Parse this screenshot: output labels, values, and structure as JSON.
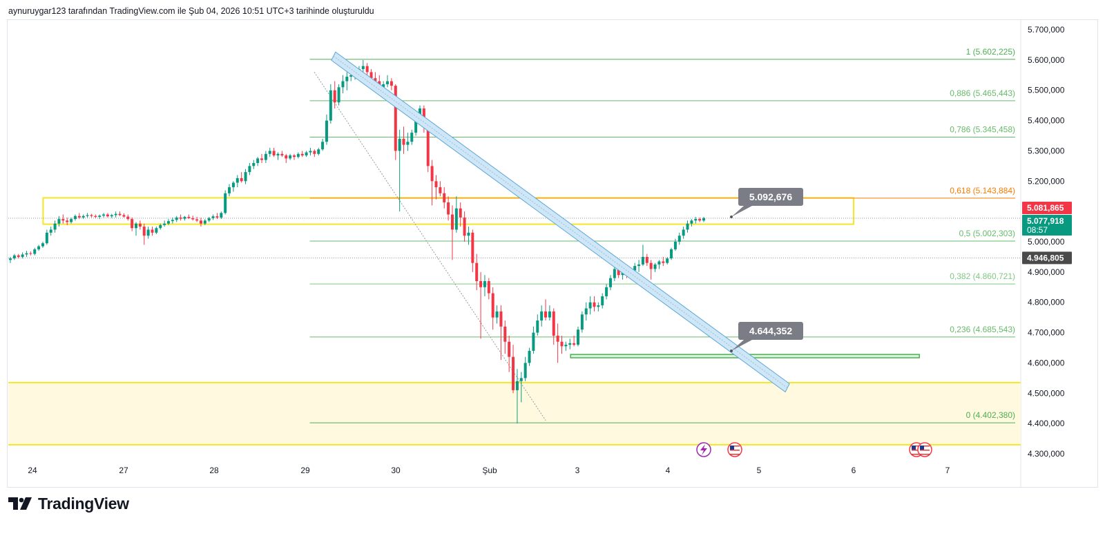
{
  "header": {
    "attribution": "aynuruygar123 tarafından TradingView.com ile Şub 04, 2026 10:51 UTC+3 tarihinde oluşturuldu"
  },
  "branding": {
    "logo_text": "TradingView",
    "logo_icon": "tradingview-logo-icon"
  },
  "chart_data": {
    "type": "candlestick",
    "x_axis": {
      "ticks": [
        "24",
        "27",
        "28",
        "29",
        "30",
        "Şub",
        "3",
        "4",
        "5",
        "6",
        "7"
      ]
    },
    "y_axis": {
      "range": [
        4.255,
        5.745
      ],
      "ticks": [
        "5.700,000",
        "5.600,000",
        "5.500,000",
        "5.400,000",
        "5.300,000",
        "5.200,000",
        "5.000,000",
        "4.900,000",
        "4.800,000",
        "4.700,000",
        "4.600,000",
        "4.500,000",
        "4.400,000",
        "4.300,000"
      ],
      "tick_values": [
        5.7,
        5.6,
        5.5,
        5.4,
        5.3,
        5.2,
        5.0,
        4.9,
        4.8,
        4.7,
        4.6,
        4.5,
        4.4,
        4.3
      ]
    },
    "price_labels": {
      "high_marker": {
        "text": "5.081,865",
        "value": 5.081865,
        "color": "#f23645"
      },
      "last_price": {
        "text": "5.077,918",
        "countdown": "08:57",
        "value": 5.077918,
        "color": "#089981"
      },
      "reference": {
        "text": "4.946,805",
        "value": 4.946805,
        "color": "#4a4a4a"
      }
    },
    "fibonacci": {
      "x_start_day": 29.05,
      "levels": [
        {
          "ratio": "1",
          "text": "1 (5.602,225)",
          "value": 5.602225,
          "color": "#4caf50"
        },
        {
          "ratio": "0.886",
          "text": "0,886 (5.465,443)",
          "value": 5.465443,
          "color": "#66bb6a"
        },
        {
          "ratio": "0.786",
          "text": "0,786 (5.345,458)",
          "value": 5.345458,
          "color": "#66bb6a"
        },
        {
          "ratio": "0.618",
          "text": "0,618 (5.143,884)",
          "value": 5.143884,
          "color": "#f57c00"
        },
        {
          "ratio": "0.5",
          "text": "0,5 (5.002,303)",
          "value": 5.002303,
          "color": "#66bb6a"
        },
        {
          "ratio": "0.382",
          "text": "0,382 (4.860,721)",
          "value": 4.860721,
          "color": "#81c784"
        },
        {
          "ratio": "0.236",
          "text": "0,236 (4.685,543)",
          "value": 4.685543,
          "color": "#66bb6a"
        },
        {
          "ratio": "0",
          "text": "0 (4.402,380)",
          "value": 4.40238,
          "color": "#4caf50"
        }
      ]
    },
    "annotations": {
      "callout_upper": {
        "text": "5.092,676",
        "value": 5.092676
      },
      "callout_lower": {
        "text": "4.644,352",
        "value": 4.644352
      }
    },
    "zones": {
      "yellow_resistance": {
        "day_from": 24.35,
        "day_to": 6.0,
        "low": 5.058,
        "high": 5.145
      },
      "yellow_support": {
        "low": 4.33,
        "high": 4.535
      },
      "green_box": {
        "day_from": 2.85,
        "day_to": 6.7,
        "low": 4.617,
        "high": 4.628
      }
    },
    "trend_channel": {
      "start": {
        "day": 29.35,
        "value": 5.615
      },
      "end": {
        "day": 5.3,
        "value": 4.52
      }
    },
    "dotted_trend": {
      "start": {
        "day": 29.1,
        "value": 5.56
      },
      "end": {
        "day": 2.3,
        "value": 4.41
      }
    },
    "candles": [
      [
        4.94,
        4.95,
        4.93,
        4.945
      ],
      [
        4.945,
        4.96,
        4.94,
        4.955
      ],
      [
        4.955,
        4.96,
        4.945,
        4.95
      ],
      [
        4.95,
        4.965,
        4.945,
        4.958
      ],
      [
        4.958,
        4.97,
        4.95,
        4.962
      ],
      [
        4.962,
        4.968,
        4.955,
        4.96
      ],
      [
        4.96,
        4.98,
        4.955,
        4.975
      ],
      [
        4.975,
        4.99,
        4.97,
        4.985
      ],
      [
        4.985,
        5.0,
        4.98,
        4.995
      ],
      [
        4.995,
        5.04,
        4.99,
        5.03
      ],
      [
        5.03,
        5.05,
        5.02,
        5.04
      ],
      [
        5.04,
        5.07,
        5.03,
        5.06
      ],
      [
        5.06,
        5.085,
        5.05,
        5.075
      ],
      [
        5.075,
        5.09,
        5.06,
        5.07
      ],
      [
        5.07,
        5.08,
        5.055,
        5.065
      ],
      [
        5.065,
        5.08,
        5.06,
        5.075
      ],
      [
        5.075,
        5.09,
        5.07,
        5.085
      ],
      [
        5.085,
        5.095,
        5.075,
        5.08
      ],
      [
        5.08,
        5.09,
        5.075,
        5.085
      ],
      [
        5.085,
        5.095,
        5.08,
        5.088
      ],
      [
        5.088,
        5.092,
        5.08,
        5.085
      ],
      [
        5.085,
        5.09,
        5.078,
        5.082
      ],
      [
        5.082,
        5.09,
        5.075,
        5.086
      ],
      [
        5.086,
        5.095,
        5.08,
        5.09
      ],
      [
        5.09,
        5.095,
        5.08,
        5.084
      ],
      [
        5.084,
        5.092,
        5.078,
        5.088
      ],
      [
        5.088,
        5.1,
        5.08,
        5.092
      ],
      [
        5.092,
        5.1,
        5.085,
        5.088
      ],
      [
        5.088,
        5.094,
        5.08,
        5.083
      ],
      [
        5.083,
        5.09,
        5.07,
        5.075
      ],
      [
        5.075,
        5.08,
        5.035,
        5.045
      ],
      [
        5.045,
        5.065,
        5.02,
        5.06
      ],
      [
        5.06,
        5.07,
        5.04,
        5.05
      ],
      [
        5.05,
        5.06,
        4.99,
        5.02
      ],
      [
        5.02,
        5.05,
        5.01,
        5.04
      ],
      [
        5.04,
        5.05,
        5.02,
        5.03
      ],
      [
        5.03,
        5.05,
        5.025,
        5.045
      ],
      [
        5.045,
        5.06,
        5.04,
        5.055
      ],
      [
        5.055,
        5.07,
        5.05,
        5.06
      ],
      [
        5.06,
        5.075,
        5.055,
        5.068
      ],
      [
        5.068,
        5.08,
        5.06,
        5.072
      ],
      [
        5.072,
        5.085,
        5.065,
        5.08
      ],
      [
        5.08,
        5.09,
        5.07,
        5.076
      ],
      [
        5.076,
        5.085,
        5.07,
        5.082
      ],
      [
        5.082,
        5.09,
        5.075,
        5.078
      ],
      [
        5.078,
        5.086,
        5.07,
        5.074
      ],
      [
        5.074,
        5.082,
        5.065,
        5.07
      ],
      [
        5.07,
        5.08,
        5.05,
        5.06
      ],
      [
        5.06,
        5.075,
        5.055,
        5.07
      ],
      [
        5.07,
        5.082,
        5.065,
        5.078
      ],
      [
        5.078,
        5.09,
        5.072,
        5.084
      ],
      [
        5.084,
        5.095,
        5.075,
        5.08
      ],
      [
        5.08,
        5.1,
        5.075,
        5.095
      ],
      [
        5.095,
        5.17,
        5.09,
        5.16
      ],
      [
        5.16,
        5.19,
        5.15,
        5.18
      ],
      [
        5.18,
        5.2,
        5.165,
        5.195
      ],
      [
        5.195,
        5.22,
        5.18,
        5.21
      ],
      [
        5.21,
        5.23,
        5.195,
        5.2
      ],
      [
        5.2,
        5.24,
        5.19,
        5.23
      ],
      [
        5.23,
        5.26,
        5.22,
        5.25
      ],
      [
        5.25,
        5.27,
        5.24,
        5.26
      ],
      [
        5.26,
        5.28,
        5.25,
        5.275
      ],
      [
        5.275,
        5.29,
        5.26,
        5.27
      ],
      [
        5.27,
        5.3,
        5.26,
        5.29
      ],
      [
        5.29,
        5.31,
        5.28,
        5.3
      ],
      [
        5.3,
        5.31,
        5.28,
        5.285
      ],
      [
        5.285,
        5.295,
        5.27,
        5.29
      ],
      [
        5.29,
        5.3,
        5.28,
        5.285
      ],
      [
        5.285,
        5.29,
        5.26,
        5.275
      ],
      [
        5.275,
        5.29,
        5.27,
        5.285
      ],
      [
        5.285,
        5.29,
        5.27,
        5.28
      ],
      [
        5.28,
        5.295,
        5.275,
        5.29
      ],
      [
        5.29,
        5.3,
        5.28,
        5.285
      ],
      [
        5.285,
        5.3,
        5.28,
        5.295
      ],
      [
        5.295,
        5.31,
        5.285,
        5.3
      ],
      [
        5.3,
        5.305,
        5.28,
        5.29
      ],
      [
        5.29,
        5.31,
        5.285,
        5.305
      ],
      [
        5.305,
        5.34,
        5.3,
        5.33
      ],
      [
        5.33,
        5.42,
        5.32,
        5.4
      ],
      [
        5.4,
        5.52,
        5.39,
        5.5
      ],
      [
        5.5,
        5.53,
        5.44,
        5.46
      ],
      [
        5.46,
        5.52,
        5.45,
        5.51
      ],
      [
        5.51,
        5.55,
        5.49,
        5.53
      ],
      [
        5.53,
        5.56,
        5.5,
        5.545
      ],
      [
        5.545,
        5.57,
        5.53,
        5.55
      ],
      [
        5.55,
        5.57,
        5.535,
        5.56
      ],
      [
        5.56,
        5.58,
        5.545,
        5.57
      ],
      [
        5.57,
        5.6,
        5.56,
        5.58
      ],
      [
        5.58,
        5.59,
        5.55,
        5.56
      ],
      [
        5.56,
        5.57,
        5.52,
        5.54
      ],
      [
        5.54,
        5.56,
        5.52,
        5.53
      ],
      [
        5.53,
        5.55,
        5.5,
        5.51
      ],
      [
        5.51,
        5.53,
        5.5,
        5.52
      ],
      [
        5.52,
        5.55,
        5.51,
        5.53
      ],
      [
        5.53,
        5.54,
        5.5,
        5.515
      ],
      [
        5.515,
        5.52,
        5.27,
        5.3
      ],
      [
        5.3,
        5.37,
        5.1,
        5.34
      ],
      [
        5.34,
        5.38,
        5.29,
        5.32
      ],
      [
        5.32,
        5.36,
        5.3,
        5.33
      ],
      [
        5.33,
        5.37,
        5.32,
        5.36
      ],
      [
        5.36,
        5.42,
        5.35,
        5.41
      ],
      [
        5.41,
        5.45,
        5.4,
        5.44
      ],
      [
        5.44,
        5.45,
        5.36,
        5.39
      ],
      [
        5.39,
        5.4,
        5.23,
        5.25
      ],
      [
        5.25,
        5.27,
        5.12,
        5.2
      ],
      [
        5.2,
        5.22,
        5.14,
        5.18
      ],
      [
        5.18,
        5.2,
        5.15,
        5.16
      ],
      [
        5.16,
        5.18,
        5.11,
        5.13
      ],
      [
        5.13,
        5.15,
        5.07,
        5.09
      ],
      [
        5.09,
        5.12,
        4.94,
        5.04
      ],
      [
        5.04,
        5.15,
        5.03,
        5.11
      ],
      [
        5.11,
        5.13,
        5.05,
        5.08
      ],
      [
        5.08,
        5.1,
        5.0,
        5.02
      ],
      [
        5.02,
        5.05,
        4.99,
        5.03
      ],
      [
        5.03,
        5.04,
        4.9,
        4.93
      ],
      [
        4.93,
        4.96,
        4.84,
        4.87
      ],
      [
        4.87,
        4.9,
        4.68,
        4.85
      ],
      [
        4.85,
        4.89,
        4.82,
        4.87
      ],
      [
        4.87,
        4.88,
        4.81,
        4.83
      ],
      [
        4.83,
        4.85,
        4.71,
        4.75
      ],
      [
        4.75,
        4.79,
        4.73,
        4.77
      ],
      [
        4.77,
        4.79,
        4.61,
        4.72
      ],
      [
        4.72,
        4.74,
        4.63,
        4.67
      ],
      [
        4.67,
        4.69,
        4.57,
        4.62
      ],
      [
        4.62,
        4.66,
        4.5,
        4.51
      ],
      [
        4.51,
        4.58,
        4.4,
        4.54
      ],
      [
        4.54,
        4.57,
        4.47,
        4.55
      ],
      [
        4.55,
        4.62,
        4.54,
        4.6
      ],
      [
        4.6,
        4.65,
        4.59,
        4.64
      ],
      [
        4.64,
        4.72,
        4.63,
        4.7
      ],
      [
        4.7,
        4.76,
        4.69,
        4.74
      ],
      [
        4.74,
        4.79,
        4.72,
        4.77
      ],
      [
        4.77,
        4.81,
        4.74,
        4.75
      ],
      [
        4.75,
        4.79,
        4.74,
        4.77
      ],
      [
        4.77,
        4.78,
        4.66,
        4.69
      ],
      [
        4.69,
        4.73,
        4.6,
        4.67
      ],
      [
        4.67,
        4.69,
        4.63,
        4.655
      ],
      [
        4.655,
        4.67,
        4.64,
        4.66
      ],
      [
        4.66,
        4.68,
        4.645,
        4.665
      ],
      [
        4.665,
        4.69,
        4.655,
        4.66
      ],
      [
        4.66,
        4.72,
        4.655,
        4.71
      ],
      [
        4.71,
        4.77,
        4.7,
        4.76
      ],
      [
        4.76,
        4.8,
        4.74,
        4.78
      ],
      [
        4.78,
        4.82,
        4.76,
        4.8
      ],
      [
        4.8,
        4.82,
        4.77,
        4.785
      ],
      [
        4.785,
        4.8,
        4.77,
        4.79
      ],
      [
        4.79,
        4.83,
        4.78,
        4.82
      ],
      [
        4.82,
        4.86,
        4.81,
        4.85
      ],
      [
        4.85,
        4.89,
        4.84,
        4.88
      ],
      [
        4.88,
        4.92,
        4.87,
        4.91
      ],
      [
        4.91,
        4.93,
        4.88,
        4.89
      ],
      [
        4.89,
        4.91,
        4.875,
        4.9
      ],
      [
        4.9,
        4.92,
        4.88,
        4.895
      ],
      [
        4.895,
        4.91,
        4.88,
        4.905
      ],
      [
        4.905,
        4.93,
        4.89,
        4.92
      ],
      [
        4.92,
        4.94,
        4.9,
        4.925
      ],
      [
        4.925,
        4.99,
        4.92,
        4.95
      ],
      [
        4.95,
        4.96,
        4.92,
        4.93
      ],
      [
        4.93,
        4.94,
        4.875,
        4.91
      ],
      [
        4.91,
        4.93,
        4.9,
        4.925
      ],
      [
        4.925,
        4.94,
        4.91,
        4.935
      ],
      [
        4.935,
        4.95,
        4.92,
        4.93
      ],
      [
        4.93,
        4.95,
        4.925,
        4.945
      ],
      [
        4.945,
        4.98,
        4.94,
        4.975
      ],
      [
        4.975,
        5.01,
        4.97,
        5.0
      ],
      [
        5.0,
        5.03,
        4.99,
        5.02
      ],
      [
        5.02,
        5.05,
        5.01,
        5.04
      ],
      [
        5.04,
        5.07,
        5.03,
        5.06
      ],
      [
        5.06,
        5.075,
        5.05,
        5.07
      ],
      [
        5.07,
        5.082,
        5.06,
        5.075
      ],
      [
        5.075,
        5.08,
        5.065,
        5.07
      ],
      [
        5.07,
        5.082,
        5.065,
        5.078
      ]
    ]
  }
}
